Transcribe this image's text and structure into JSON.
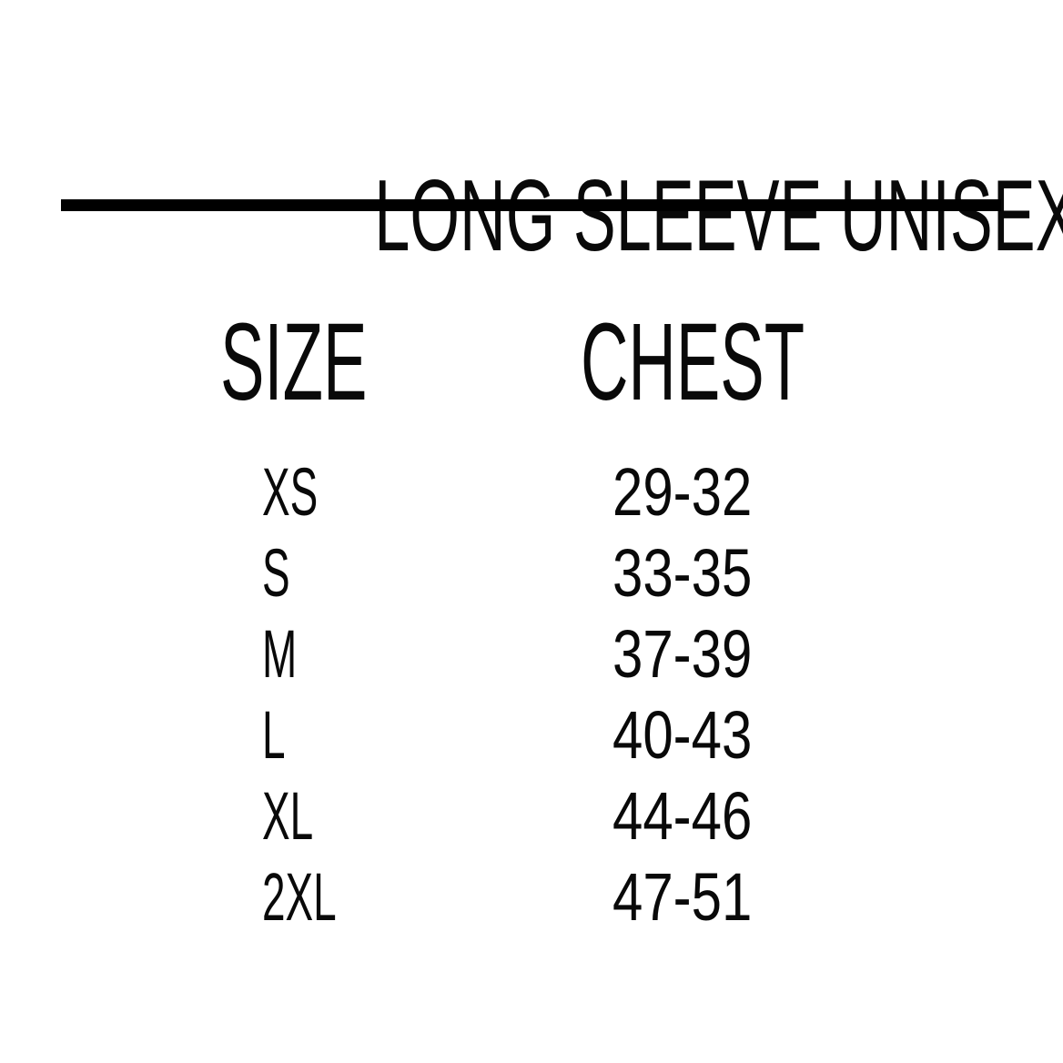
{
  "title": "LONG SLEEVE UNISEX  TEES",
  "table": {
    "columns": [
      {
        "key": "size",
        "label": "SIZE"
      },
      {
        "key": "chest",
        "label": "CHEST"
      }
    ],
    "rows": [
      {
        "size": "XS",
        "chest": "29-32"
      },
      {
        "size": "S",
        "chest": "33-35"
      },
      {
        "size": "M",
        "chest": "37-39"
      },
      {
        "size": "L",
        "chest": "40-43"
      },
      {
        "size": "XL",
        "chest": "44-46"
      },
      {
        "size": "2XL",
        "chest": "47-51"
      }
    ]
  },
  "colors": {
    "background": "#ffffff",
    "text": "#090909",
    "divider": "#000000"
  }
}
